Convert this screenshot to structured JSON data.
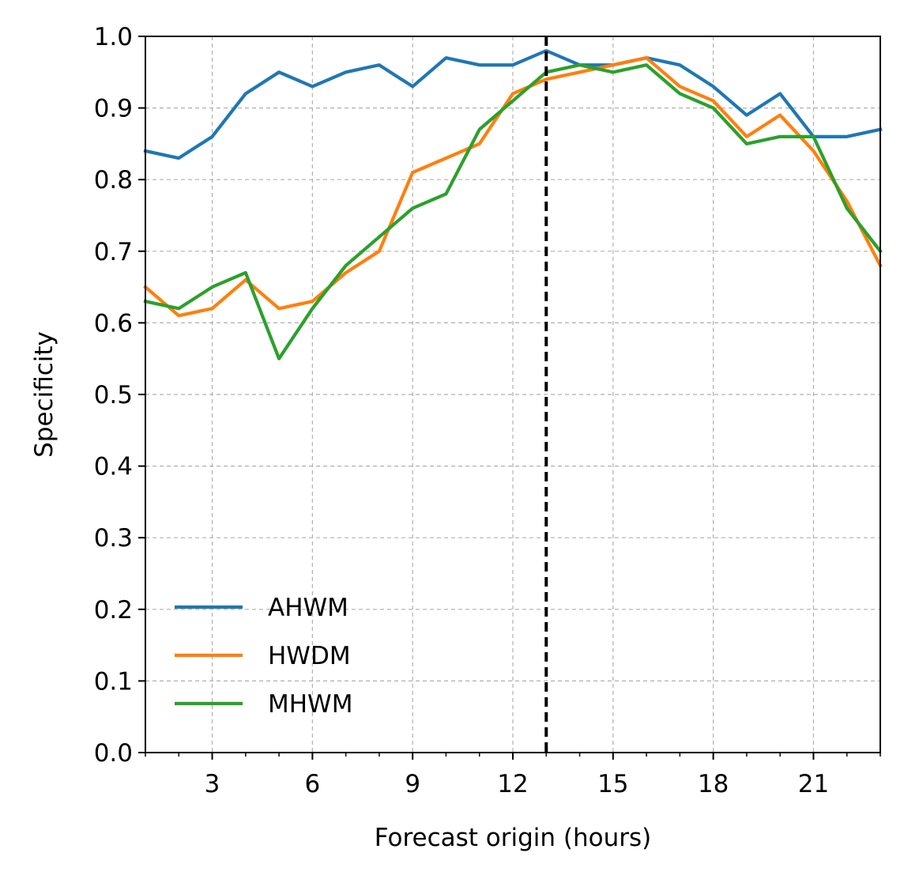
{
  "chart_data": {
    "type": "line",
    "xlabel": "Forecast origin (hours)",
    "ylabel": "Specificity",
    "xlim": [
      1,
      23
    ],
    "ylim": [
      0.0,
      1.0
    ],
    "x_ticks": [
      3,
      6,
      9,
      12,
      15,
      18,
      21
    ],
    "x_tick_labels": [
      "3",
      "6",
      "9",
      "12",
      "15",
      "18",
      "21"
    ],
    "y_ticks": [
      0.0,
      0.1,
      0.2,
      0.3,
      0.4,
      0.5,
      0.6,
      0.7,
      0.8,
      0.9,
      1.0
    ],
    "y_tick_labels": [
      "0.0",
      "0.1",
      "0.2",
      "0.3",
      "0.4",
      "0.5",
      "0.6",
      "0.7",
      "0.8",
      "0.9",
      "1.0"
    ],
    "grid": true,
    "legend_position": "lower-left",
    "vertical_line": {
      "x": 13,
      "style": "dashed",
      "color": "#000000"
    },
    "x": [
      1,
      2,
      3,
      4,
      5,
      6,
      7,
      8,
      9,
      10,
      11,
      12,
      13,
      14,
      15,
      16,
      17,
      18,
      19,
      20,
      21,
      22,
      23
    ],
    "series": [
      {
        "name": "AHWM",
        "color": "#1f77b4",
        "values": [
          0.84,
          0.83,
          0.86,
          0.92,
          0.95,
          0.93,
          0.95,
          0.96,
          0.93,
          0.97,
          0.96,
          0.96,
          0.98,
          0.96,
          0.96,
          0.97,
          0.96,
          0.93,
          0.89,
          0.92,
          0.86,
          0.86,
          0.87
        ]
      },
      {
        "name": "HWDM",
        "color": "#ff7f0e",
        "values": [
          0.65,
          0.61,
          0.62,
          0.66,
          0.62,
          0.63,
          0.67,
          0.7,
          0.81,
          0.83,
          0.85,
          0.92,
          0.94,
          0.95,
          0.96,
          0.97,
          0.93,
          0.91,
          0.86,
          0.89,
          0.84,
          0.77,
          0.68
        ]
      },
      {
        "name": "MHWM",
        "color": "#2ca02c",
        "values": [
          0.63,
          0.62,
          0.65,
          0.67,
          0.55,
          0.62,
          0.68,
          0.72,
          0.76,
          0.78,
          0.87,
          0.91,
          0.95,
          0.96,
          0.95,
          0.96,
          0.92,
          0.9,
          0.85,
          0.86,
          0.86,
          0.76,
          0.7
        ]
      }
    ]
  }
}
